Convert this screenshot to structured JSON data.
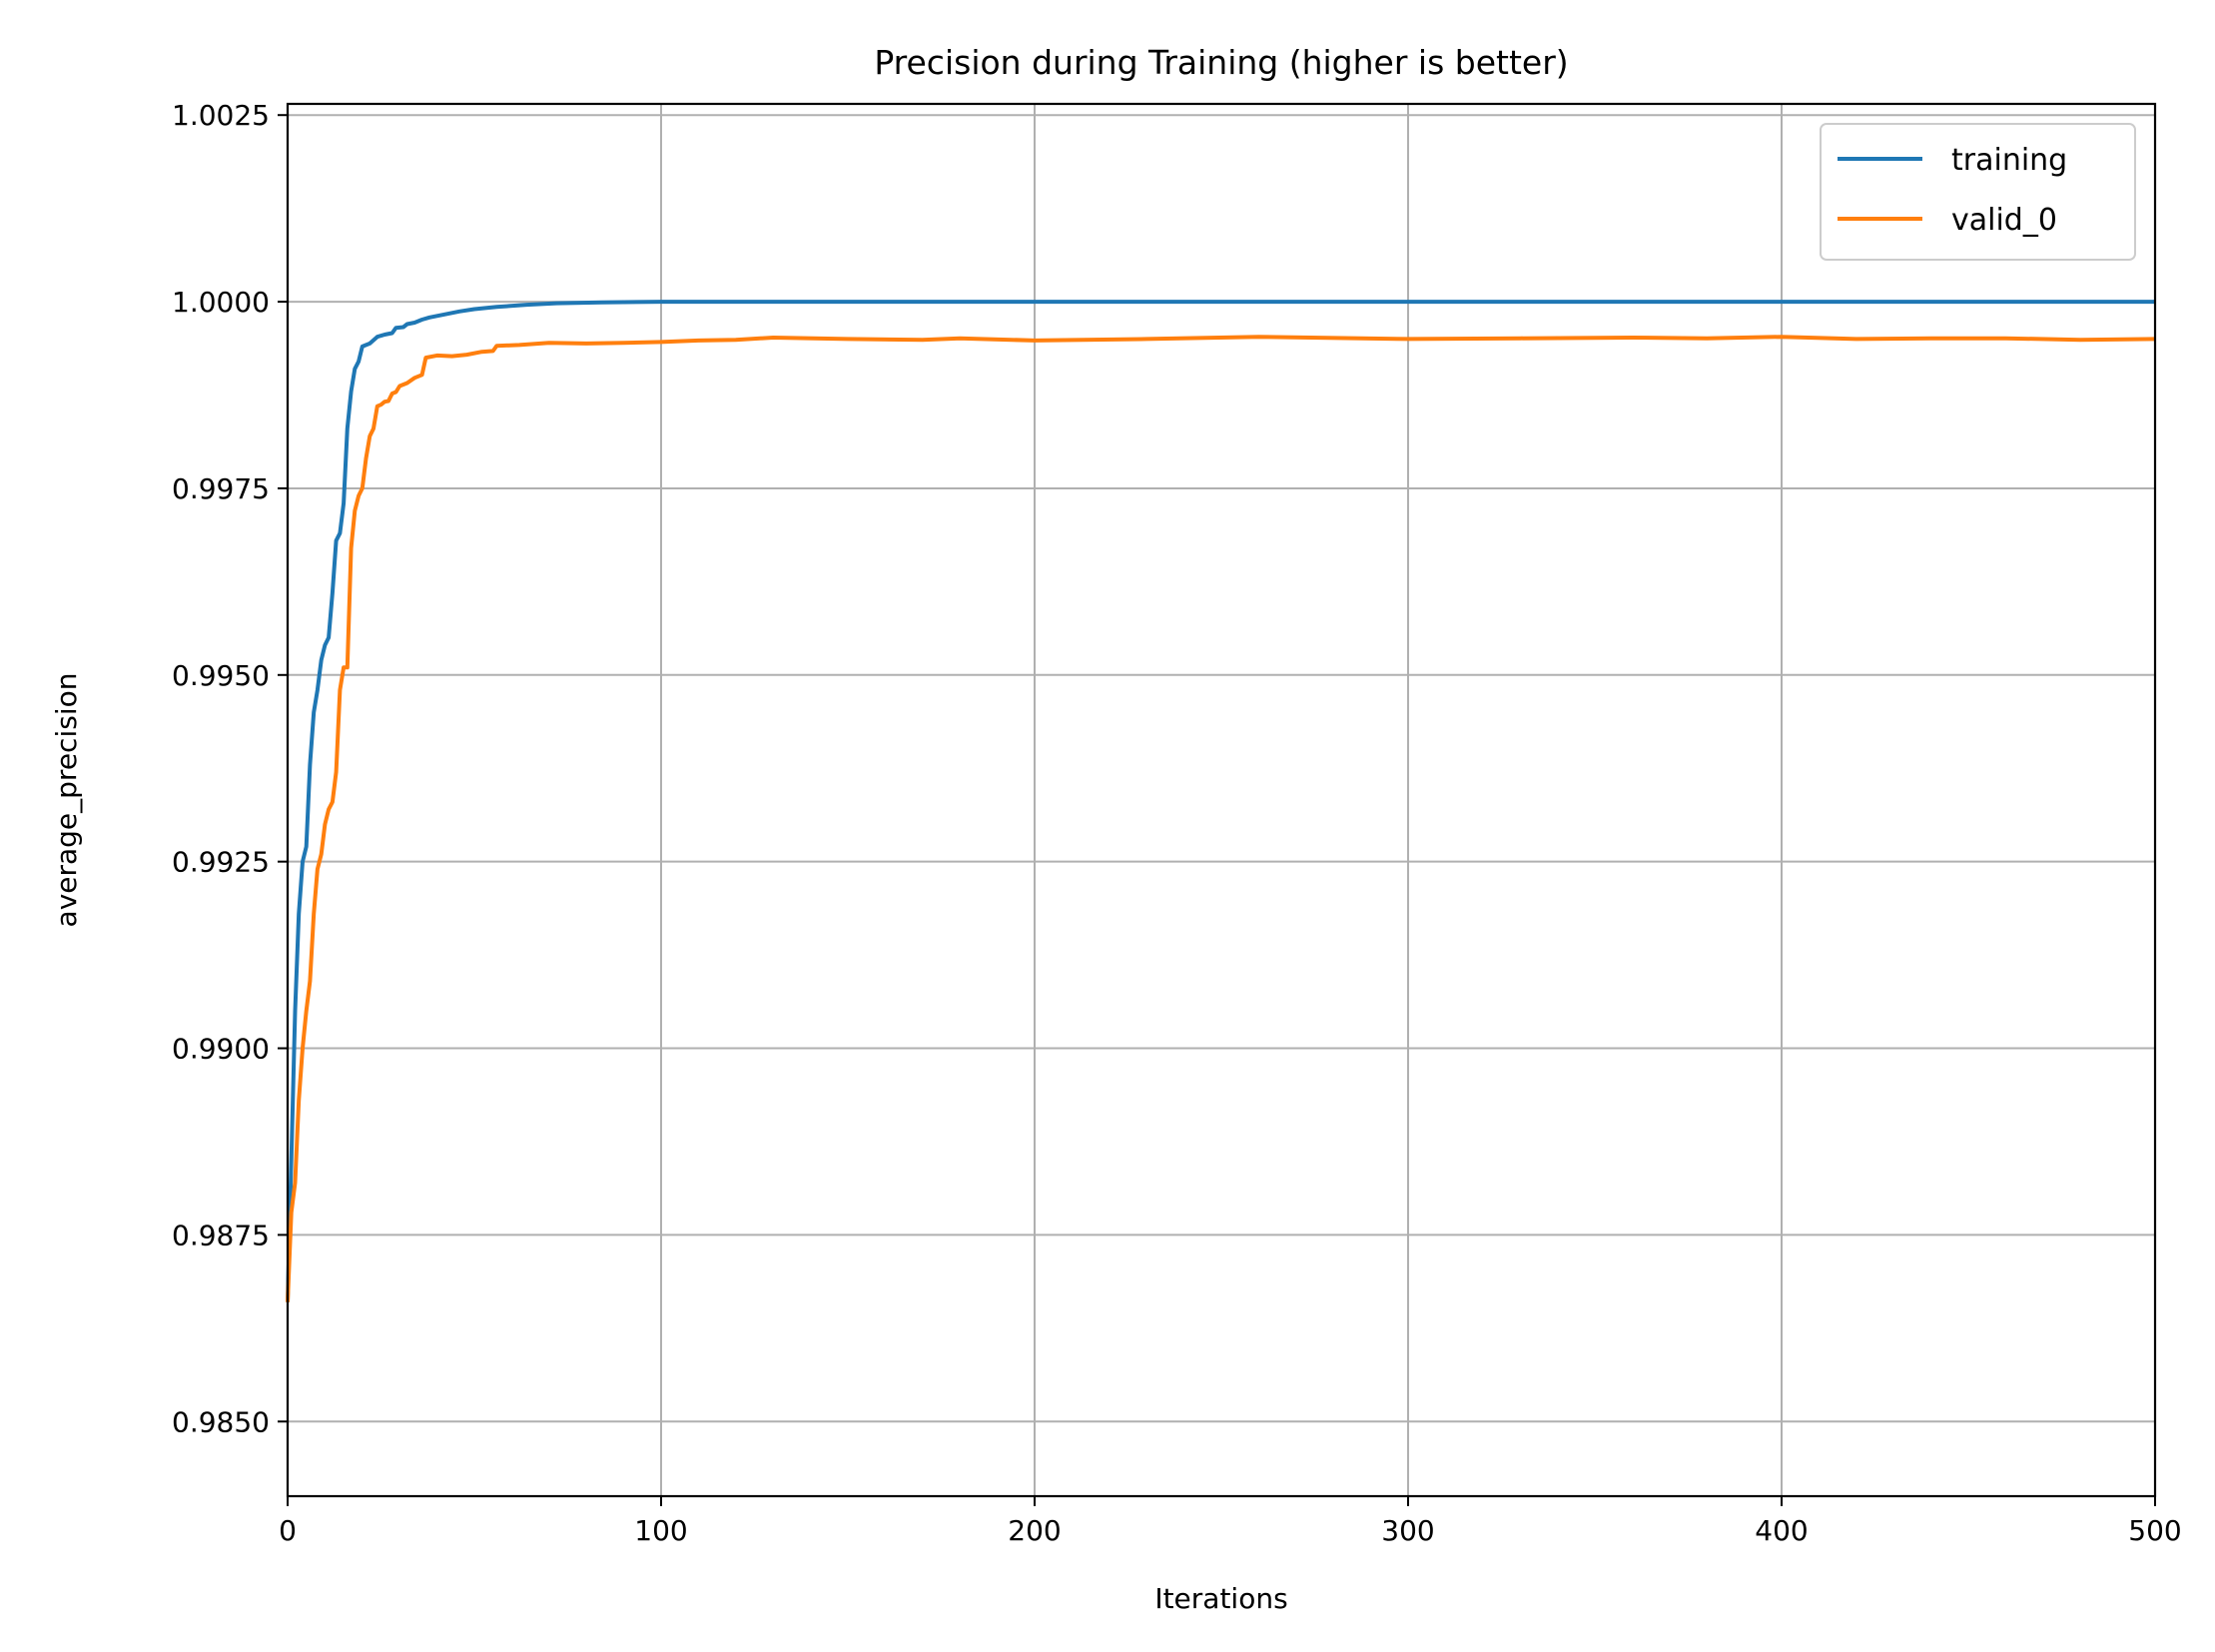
{
  "chart_data": {
    "type": "line",
    "title": "Precision during Training (higher is better)",
    "xlabel": "Iterations",
    "ylabel": "average_precision",
    "xlim": [
      0,
      500
    ],
    "ylim": [
      0.984,
      1.00265
    ],
    "xticks": [
      0,
      100,
      200,
      300,
      400,
      500
    ],
    "xtick_labels": [
      "0",
      "100",
      "200",
      "300",
      "400",
      "500"
    ],
    "yticks": [
      0.985,
      0.9875,
      0.99,
      0.9925,
      0.995,
      0.9975,
      1.0,
      1.0025
    ],
    "ytick_labels": [
      "0.9850",
      "0.9875",
      "0.9900",
      "0.9925",
      "0.9950",
      "0.9975",
      "1.0000",
      "1.0025"
    ],
    "grid": true,
    "legend_position": "top-right",
    "series": [
      {
        "name": "training",
        "color": "#1f77b4",
        "points": [
          [
            0,
            0.9866
          ],
          [
            1,
            0.9885
          ],
          [
            2,
            0.9905
          ],
          [
            3,
            0.9918
          ],
          [
            4,
            0.9925
          ],
          [
            5,
            0.9927
          ],
          [
            6,
            0.9938
          ],
          [
            7,
            0.9945
          ],
          [
            8,
            0.9948
          ],
          [
            9,
            0.9952
          ],
          [
            10,
            0.9954
          ],
          [
            11,
            0.9955
          ],
          [
            12,
            0.9961
          ],
          [
            13,
            0.9968
          ],
          [
            14,
            0.9969
          ],
          [
            15,
            0.9973
          ],
          [
            16,
            0.9983
          ],
          [
            17,
            0.9988
          ],
          [
            18,
            0.9991
          ],
          [
            19,
            0.9992
          ],
          [
            20,
            0.9994
          ],
          [
            22,
            0.99944
          ],
          [
            24,
            0.99953
          ],
          [
            26,
            0.99956
          ],
          [
            28,
            0.99958
          ],
          [
            29,
            0.99965
          ],
          [
            31,
            0.99966
          ],
          [
            32,
            0.9997
          ],
          [
            34,
            0.99972
          ],
          [
            36,
            0.99976
          ],
          [
            38,
            0.99979
          ],
          [
            42,
            0.99983
          ],
          [
            46,
            0.99987
          ],
          [
            50,
            0.9999
          ],
          [
            56,
            0.99993
          ],
          [
            64,
            0.99996
          ],
          [
            72,
            0.99998
          ],
          [
            84,
            0.99999
          ],
          [
            100,
            1.0
          ],
          [
            200,
            1.0
          ],
          [
            300,
            1.0
          ],
          [
            400,
            1.0
          ],
          [
            500,
            1.0
          ]
        ]
      },
      {
        "name": "valid_0",
        "color": "#ff7f0e",
        "points": [
          [
            0,
            0.9866
          ],
          [
            1,
            0.9878
          ],
          [
            2,
            0.9882
          ],
          [
            3,
            0.9893
          ],
          [
            4,
            0.99
          ],
          [
            5,
            0.9905
          ],
          [
            6,
            0.9909
          ],
          [
            7,
            0.9918
          ],
          [
            8,
            0.9924
          ],
          [
            9,
            0.9926
          ],
          [
            10,
            0.993
          ],
          [
            11,
            0.9932
          ],
          [
            12,
            0.9933
          ],
          [
            13,
            0.9937
          ],
          [
            14,
            0.9948
          ],
          [
            15,
            0.9951
          ],
          [
            16,
            0.9951
          ],
          [
            17,
            0.9967
          ],
          [
            18,
            0.9972
          ],
          [
            19,
            0.9974
          ],
          [
            20,
            0.9975
          ],
          [
            21,
            0.9979
          ],
          [
            22,
            0.9982
          ],
          [
            23,
            0.9983
          ],
          [
            24,
            0.9986
          ],
          [
            25,
            0.99862
          ],
          [
            26,
            0.99866
          ],
          [
            27,
            0.99867
          ],
          [
            28,
            0.99877
          ],
          [
            29,
            0.99879
          ],
          [
            30,
            0.99887
          ],
          [
            32,
            0.99891
          ],
          [
            34,
            0.99898
          ],
          [
            36,
            0.99902
          ],
          [
            37,
            0.99925
          ],
          [
            40,
            0.99928
          ],
          [
            44,
            0.99927
          ],
          [
            48,
            0.99929
          ],
          [
            52,
            0.99933
          ],
          [
            55,
            0.99934
          ],
          [
            56,
            0.99941
          ],
          [
            62,
            0.99942
          ],
          [
            70,
            0.99945
          ],
          [
            80,
            0.99944
          ],
          [
            90,
            0.99945
          ],
          [
            100,
            0.99946
          ],
          [
            110,
            0.99948
          ],
          [
            120,
            0.99949
          ],
          [
            130,
            0.99952
          ],
          [
            150,
            0.9995
          ],
          [
            170,
            0.99949
          ],
          [
            180,
            0.99951
          ],
          [
            200,
            0.99948
          ],
          [
            230,
            0.9995
          ],
          [
            260,
            0.99953
          ],
          [
            300,
            0.9995
          ],
          [
            330,
            0.99951
          ],
          [
            360,
            0.99952
          ],
          [
            380,
            0.99951
          ],
          [
            400,
            0.99953
          ],
          [
            420,
            0.9995
          ],
          [
            440,
            0.99951
          ],
          [
            460,
            0.99951
          ],
          [
            480,
            0.99949
          ],
          [
            500,
            0.9995
          ]
        ]
      }
    ]
  }
}
